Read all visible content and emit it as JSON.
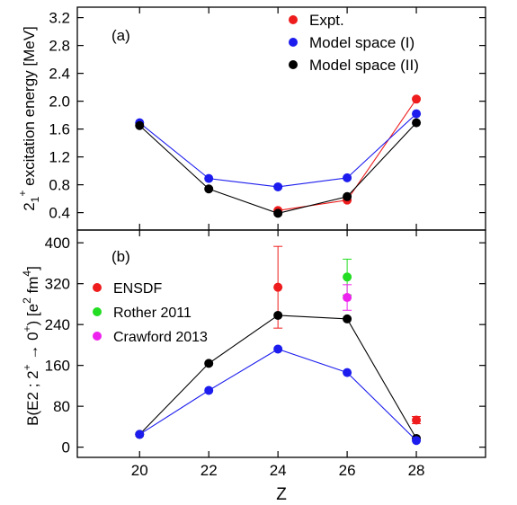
{
  "chart_data": [
    {
      "panel_label": "(a)",
      "type": "line",
      "ylabel": "2₁⁺ excitation energy [MeV]",
      "ylim": [
        0.15,
        3.35
      ],
      "yticks": [
        0.4,
        0.8,
        1.2,
        1.6,
        2.0,
        2.4,
        2.8,
        3.2
      ],
      "ytick_labels": [
        "0.4",
        "0.8",
        "1.2",
        "1.6",
        "2.0",
        "2.4",
        "2.8",
        "3.2"
      ],
      "legend_position": "top-right",
      "series": [
        {
          "name": "Expt.",
          "color": "#ee1c1c",
          "x": [
            24,
            26,
            28
          ],
          "y": [
            0.43,
            0.58,
            2.03
          ],
          "lines": true
        },
        {
          "name": "Model space (I)",
          "color": "#1c1cee",
          "x": [
            20,
            22,
            24,
            26,
            28
          ],
          "y": [
            1.69,
            0.89,
            0.77,
            0.9,
            1.82
          ],
          "lines": true
        },
        {
          "name": "Model space (II)",
          "color": "#000000",
          "x": [
            20,
            22,
            24,
            26,
            28
          ],
          "y": [
            1.65,
            0.74,
            0.39,
            0.63,
            1.69
          ],
          "lines": true
        }
      ]
    },
    {
      "panel_label": "(b)",
      "type": "scatter",
      "ylabel": "B(E2 ; 2⁺ → 0⁺) [e² fm⁴]",
      "ylim": [
        -20,
        425
      ],
      "yticks": [
        0,
        80,
        160,
        240,
        320,
        400
      ],
      "ytick_labels": [
        "0",
        "80",
        "160",
        "240",
        "320",
        "400"
      ],
      "legend_position": "upper-left",
      "series": [
        {
          "name": "ENSDF",
          "color": "#ee1c1c",
          "x": [
            24,
            28
          ],
          "y": [
            313,
            53
          ],
          "err": [
            80,
            7
          ],
          "lines": false,
          "in_legend": true
        },
        {
          "name": "Rother 2011",
          "color": "#22dd22",
          "x": [
            26
          ],
          "y": [
            333
          ],
          "err": [
            35
          ],
          "lines": false,
          "in_legend": true
        },
        {
          "name": "Crawford 2013",
          "color": "#ee22ee",
          "x": [
            26
          ],
          "y": [
            293
          ],
          "err": [
            25
          ],
          "lines": false,
          "in_legend": true
        },
        {
          "name": "",
          "color": "#000000",
          "x": [
            20,
            22,
            24,
            26,
            28
          ],
          "y": [
            25,
            164,
            258,
            251,
            17
          ],
          "lines": true,
          "in_legend": false
        },
        {
          "name": "",
          "color": "#1c1cee",
          "x": [
            20,
            22,
            24,
            26,
            28
          ],
          "y": [
            25,
            111,
            192,
            146,
            13
          ],
          "lines": true,
          "in_legend": false
        }
      ]
    }
  ],
  "x_axis": {
    "label": "Z",
    "xlim": [
      18.2,
      30.0
    ],
    "ticks": [
      20,
      22,
      24,
      26,
      28
    ],
    "tick_labels": [
      "20",
      "22",
      "24",
      "26",
      "28"
    ]
  }
}
